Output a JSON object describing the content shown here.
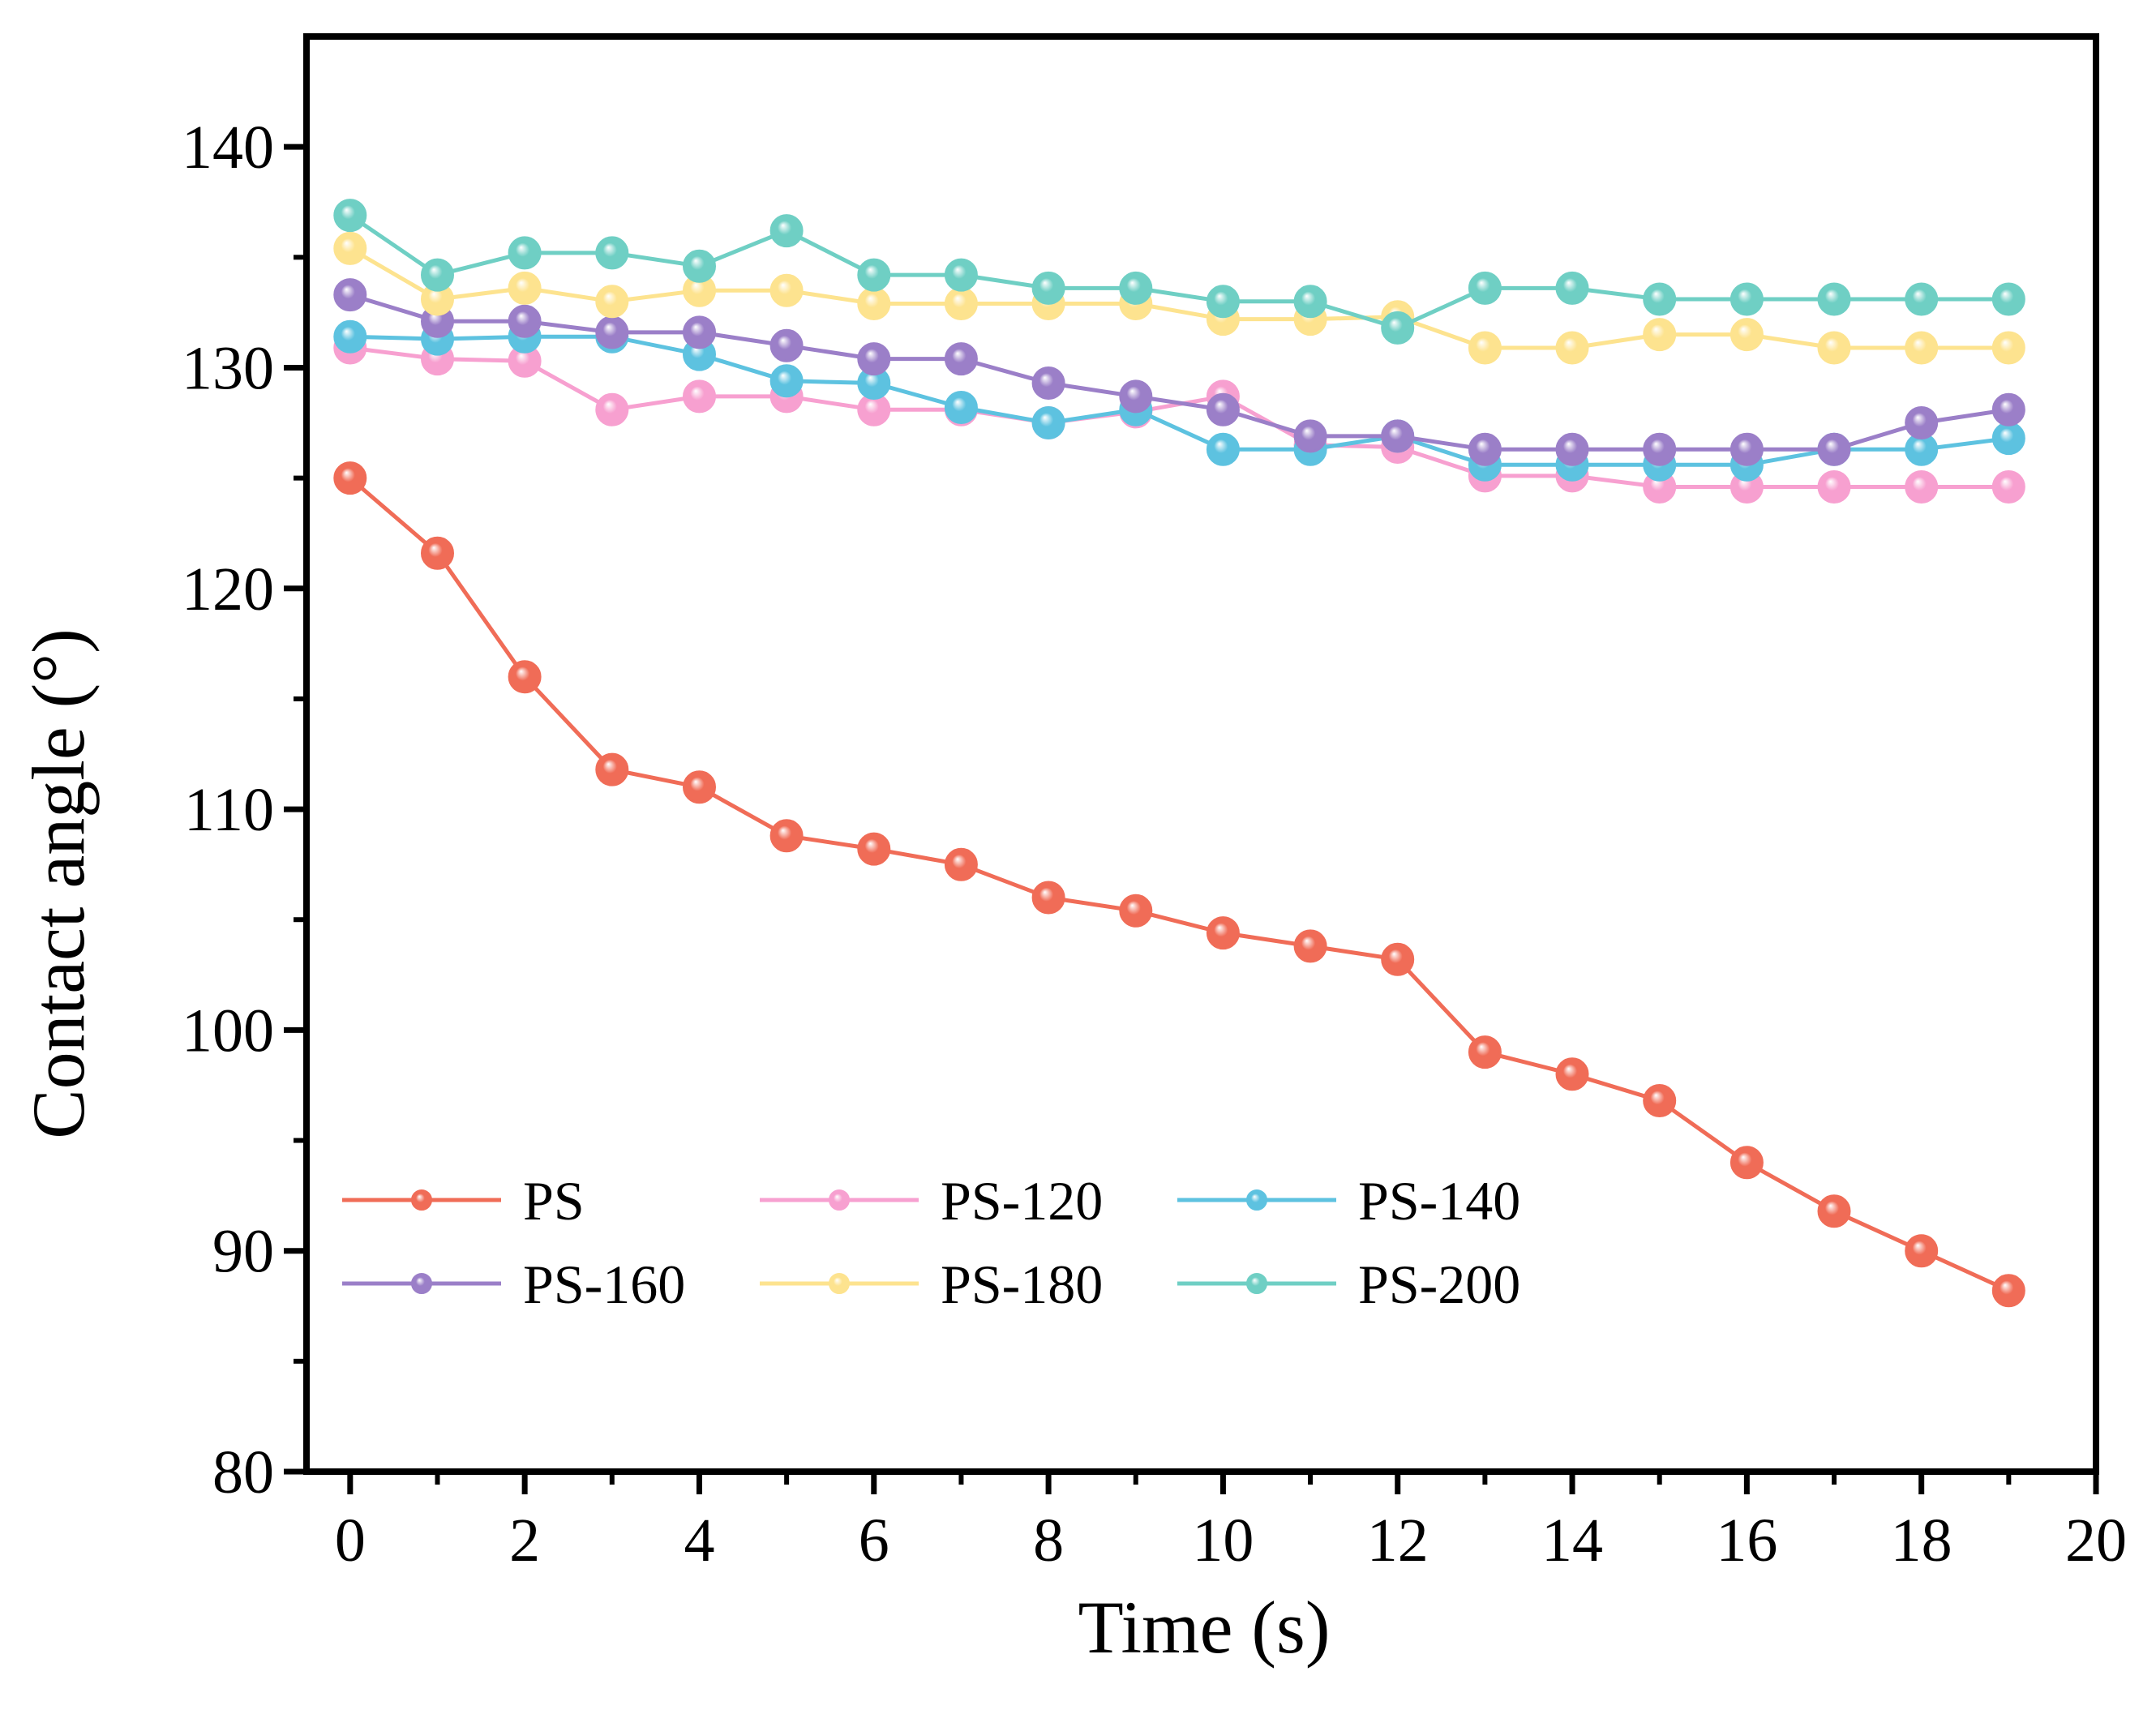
{
  "chart_data": {
    "type": "line",
    "title": "",
    "xlabel": "Time (s)",
    "ylabel": "Contact angle (°)",
    "xlim": [
      -0.5,
      20
    ],
    "ylim": [
      80,
      145
    ],
    "xticks": [
      0,
      2,
      4,
      6,
      8,
      10,
      12,
      14,
      16,
      18,
      20
    ],
    "xtick_labels": [
      "0",
      "2",
      "4",
      "6",
      "8",
      "10",
      "12",
      "14",
      "16",
      "18",
      "20"
    ],
    "yticks": [
      80,
      90,
      100,
      110,
      120,
      130,
      140
    ],
    "ytick_labels": [
      "80",
      "90",
      "100",
      "110",
      "120",
      "130",
      "140"
    ],
    "grid": false,
    "legend_position": "bottom-left",
    "x": [
      0,
      1,
      2,
      3,
      4,
      5,
      6,
      7,
      8,
      9,
      10,
      11,
      12,
      13,
      14,
      15,
      16,
      17,
      18,
      19
    ],
    "series": [
      {
        "name": "PS",
        "color": "#f06c57",
        "values": [
          125.0,
          121.6,
          116.0,
          111.8,
          111.0,
          108.8,
          108.2,
          107.5,
          106.0,
          105.4,
          104.4,
          103.8,
          103.2,
          99.0,
          98.0,
          96.8,
          94.0,
          91.8,
          90.0,
          88.2
        ]
      },
      {
        "name": "PS-120",
        "color": "#f7a0d0",
        "values": [
          130.9,
          130.4,
          130.3,
          128.1,
          128.7,
          128.7,
          128.1,
          128.1,
          127.5,
          128.0,
          128.7,
          126.5,
          126.4,
          125.1,
          125.1,
          124.6,
          124.6,
          124.6,
          124.6,
          124.6
        ]
      },
      {
        "name": "PS-140",
        "color": "#5dc2e0",
        "values": [
          131.4,
          131.3,
          131.4,
          131.4,
          130.6,
          129.4,
          129.3,
          128.2,
          127.5,
          128.1,
          126.3,
          126.3,
          126.9,
          125.6,
          125.6,
          125.6,
          125.6,
          126.3,
          126.3,
          126.8
        ]
      },
      {
        "name": "PS-160",
        "color": "#9b7fc8",
        "values": [
          133.3,
          132.1,
          132.1,
          131.6,
          131.6,
          131.0,
          130.4,
          130.4,
          129.3,
          128.7,
          128.1,
          126.9,
          126.9,
          126.3,
          126.3,
          126.3,
          126.3,
          126.3,
          127.5,
          128.1
        ]
      },
      {
        "name": "PS-180",
        "color": "#fde38f",
        "values": [
          135.4,
          133.1,
          133.6,
          133.0,
          133.5,
          133.5,
          132.9,
          132.9,
          132.9,
          132.9,
          132.2,
          132.2,
          132.3,
          130.9,
          130.9,
          131.5,
          131.5,
          130.9,
          130.9,
          130.9
        ]
      },
      {
        "name": "PS-200",
        "color": "#6fcfc4",
        "values": [
          136.9,
          134.2,
          135.2,
          135.2,
          134.6,
          136.2,
          134.2,
          134.2,
          133.6,
          133.6,
          133.0,
          133.0,
          131.8,
          133.6,
          133.6,
          133.1,
          133.1,
          133.1,
          133.1,
          133.1
        ]
      }
    ]
  }
}
